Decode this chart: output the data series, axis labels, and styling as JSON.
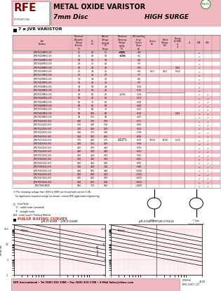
{
  "title_main": "METAL OXIDE VARISTOR",
  "title_sub": "7mm Disc",
  "title_right": "HIGH SURGE",
  "section_title": "7 ø JVR VARISTOR",
  "header_bg": "#f2b8c0",
  "table_row_bg_pink": "#f2b8c0",
  "table_row_bg_white": "#ffffff",
  "footer_bg": "#f2b8c0",
  "footer_text": "RFE International • Tel (949) 833-1988 • Fax (949) 833-1788 • E-Mail Sales@rfeinc.com",
  "footer_right": "C70804\nREV 2007.1.27",
  "note1": "1) The clamping voltage from 100V to 680V are tested with current 5.0A.",
  "note2": "   For application required ratings not shown, contact RFE application engineering.",
  "note3": "□   Lead Style:",
  "note4": "   'S' : radial leads (standard)",
  "note5": "   'P' : straight leads",
  "note6": "A,B : Lead Length / Packing Method",
  "pulse_section": "PULSE RATING CURVES",
  "graph1_title": "JVR-07S06M ~ JVR-07S46M",
  "graph2_title": "JVR-07S47K ~ JVR-07S61K",
  "graph_xlabel": "Rectangular Wave (µsec.)",
  "graph_ylabel": "Imax (A)",
  "col_headers": [
    "Part\nNumber",
    "Maximum\nAllowable\nVoltage\nAC(rms)\n(V)",
    "DC\n(V)",
    "Varistor\nVoltage\nV@1mA\n(V)\nRange",
    "Maximum\nClamping\nVoltage\nV@5A\n(V)",
    "Withstanding\nSurge\nCurrent\n1Time\n(A)",
    "2Times\n(A)",
    "Rated\nVoltage\n(W)",
    "Energy\n10/1000\nus\n(J)",
    "UL",
    "CSA",
    "VDE"
  ],
  "table_data": [
    [
      "JVR07S110M(S)-X/X",
      "11",
      "14",
      "10",
      "+30%",
      "~38",
      "",
      "",
      "",
      "1.5",
      "v",
      "",
      "v"
    ],
    [
      "JVR07S140M(S)-X/X",
      "14",
      "18",
      "14",
      "+15%",
      "~41",
      "",
      "",
      "",
      "",
      "v",
      "",
      "v"
    ],
    [
      "JVR07S180M(S)-X/X",
      "18",
      "22",
      "18",
      "",
      "~46",
      "",
      "",
      "",
      "",
      "v",
      "",
      "v"
    ],
    [
      "JVR07S200M(S)-X/X",
      "20",
      "25",
      "20",
      "",
      "~55",
      "",
      "",
      "",
      "",
      "v",
      "",
      "v"
    ],
    [
      "JVR07S220M(S)-X/X",
      "22",
      "28",
      "22",
      "",
      "~58",
      "500",
      "250",
      "0.02",
      "",
      "v",
      "",
      "v"
    ],
    [
      "JVR07S250M(S)-X/X",
      "25",
      "33",
      "25",
      "",
      "~66",
      "",
      "",
      "",
      "",
      "v",
      "",
      "v"
    ],
    [
      "JVR07S270M(S)-X/X",
      "27",
      "35",
      "27",
      "",
      "~77",
      "",
      "",
      "",
      "",
      "v",
      "",
      "v"
    ],
    [
      "JVR07S300M(S)-X/X",
      "30",
      "38",
      "30",
      "",
      "~82",
      "",
      "",
      "",
      "",
      "v",
      "",
      "v"
    ],
    [
      "JVR07S350M(S)-X/X",
      "35",
      "45",
      "35",
      "",
      "~97",
      "",
      "",
      "",
      "3.5",
      "v",
      "",
      "v"
    ],
    [
      "JVR07S390M(S)-X/X",
      "39",
      "50",
      "39",
      "",
      "~108",
      "",
      "",
      "",
      "",
      "v",
      "",
      "v"
    ],
    [
      "JVR07S420M(S)-X/X",
      "42",
      "53",
      "42",
      "",
      "~115",
      "",
      "",
      "",
      "",
      "v",
      "",
      "v"
    ],
    [
      "JVR07S470M(S)-X/X",
      "47",
      "60",
      "47",
      "±10%",
      "~129",
      "",
      "",
      "",
      "4.5",
      "v",
      "v",
      "v"
    ],
    [
      "JVR07S560M(S)-X/X",
      "56",
      "70",
      "56",
      "",
      "~153",
      "",
      "",
      "",
      "",
      "v",
      "v",
      "v"
    ],
    [
      "JVR07S620M(S)-X/X",
      "62",
      "75",
      "62",
      "",
      "~168",
      "",
      "",
      "",
      "6",
      "v",
      "v",
      "v"
    ],
    [
      "JVR07S680M(S)-X/X",
      "68",
      "85",
      "68",
      "",
      "~184",
      "",
      "",
      "",
      "",
      "v",
      "v",
      "v"
    ],
    [
      "JVR07S750M(S)-X/X",
      "75",
      "95",
      "75",
      "",
      "~201",
      "",
      "",
      "",
      "7.5",
      "v",
      "v",
      "v"
    ],
    [
      "JVR07S820M(S)-X/X",
      "82",
      "100",
      "82",
      "",
      "~220",
      "1750",
      "1250",
      "0.25",
      "",
      "v",
      "v",
      "v"
    ],
    [
      "JVR07S910M(S)-X/X",
      "91",
      "115",
      "91",
      "",
      "~247",
      "",
      "",
      "",
      "9",
      "v",
      "v",
      "v"
    ],
    [
      "JVR07S101K(S)-X/X",
      "100",
      "125",
      "100",
      "",
      "~271",
      "",
      "",
      "",
      "",
      "v",
      "v",
      "v"
    ],
    [
      "JVR07S111K(S)-X/X",
      "110",
      "140",
      "110",
      "",
      "~300",
      "",
      "",
      "",
      "11",
      "v",
      "v",
      "v"
    ],
    [
      "JVR07S121K(S)-X/X",
      "120",
      "150",
      "120",
      "",
      "~323",
      "",
      "",
      "",
      "",
      "v",
      "v",
      "v"
    ],
    [
      "JVR07S141K(S)-X/X",
      "140",
      "175",
      "140",
      "",
      "~378",
      "",
      "",
      "",
      "13",
      "v",
      "v",
      "v"
    ],
    [
      "JVR07S151K(S)-X/X",
      "150",
      "185",
      "150",
      "",
      "~408",
      "",
      "",
      "",
      "",
      "v",
      "v",
      "v"
    ],
    [
      "JVR07S171K(S)-X/X",
      "175",
      "220",
      "175",
      "",
      "~470",
      "",
      "",
      "",
      "15",
      "v",
      "v",
      "v"
    ],
    [
      "JVR07S201K(S)-X/X",
      "200",
      "255",
      "200",
      "",
      "~540",
      "",
      "",
      "",
      "",
      "v",
      "v",
      "v"
    ],
    [
      "JVR07S221K(S)-X/X",
      "220",
      "275",
      "220",
      "",
      "~595",
      "",
      "",
      "",
      "17",
      "v",
      "v",
      "v"
    ],
    [
      "JVR07S241K(S)-X/X",
      "240",
      "300",
      "240",
      "",
      "~650",
      "",
      "",
      "",
      "",
      "v",
      "v",
      "v"
    ],
    [
      "JVR07S271K(S)-X/X",
      "270",
      "350",
      "270",
      "",
      "~745",
      "",
      "",
      "",
      "19",
      "v",
      "v",
      "v"
    ],
    [
      "JVR07S301K(S)-X/X",
      "300",
      "385",
      "300",
      "",
      "~825",
      "",
      "",
      "",
      "",
      "v",
      "v",
      "v"
    ],
    [
      "JVR07S321K(S)-X/X",
      "320",
      "415",
      "320",
      "",
      "~895",
      "",
      "",
      "",
      "20",
      "v",
      "v",
      "v"
    ],
    [
      "JVR07S361K(S)-X/X",
      "360",
      "460",
      "360",
      "",
      "~980",
      "",
      "",
      "",
      "",
      "v",
      "v",
      "v"
    ],
    [
      "JVR07S391K(S)-X/X",
      "390",
      "505",
      "390",
      "",
      "~1080",
      "",
      "",
      "",
      "22",
      "v",
      "v",
      "v"
    ],
    [
      "JVR07S421K(S)-X/X",
      "420",
      "560",
      "420",
      "",
      "~1150",
      "",
      "",
      "",
      "",
      "v",
      "v",
      "v"
    ],
    [
      "JVR07S471K(S)-X/X",
      "470",
      "615",
      "470",
      "",
      "~1500",
      "",
      "",
      "",
      "25",
      "v",
      "v",
      "v"
    ],
    [
      "JVR07S511K(S)-X/X",
      "510",
      "670",
      "510",
      "",
      "~1650",
      "",
      "",
      "",
      "",
      "v",
      "v",
      "v"
    ],
    [
      "JVR07S561K65P",
      "560",
      "750",
      "560",
      "",
      "~1900",
      "",
      "",
      "",
      "28",
      "v",
      "v",
      "v"
    ]
  ]
}
